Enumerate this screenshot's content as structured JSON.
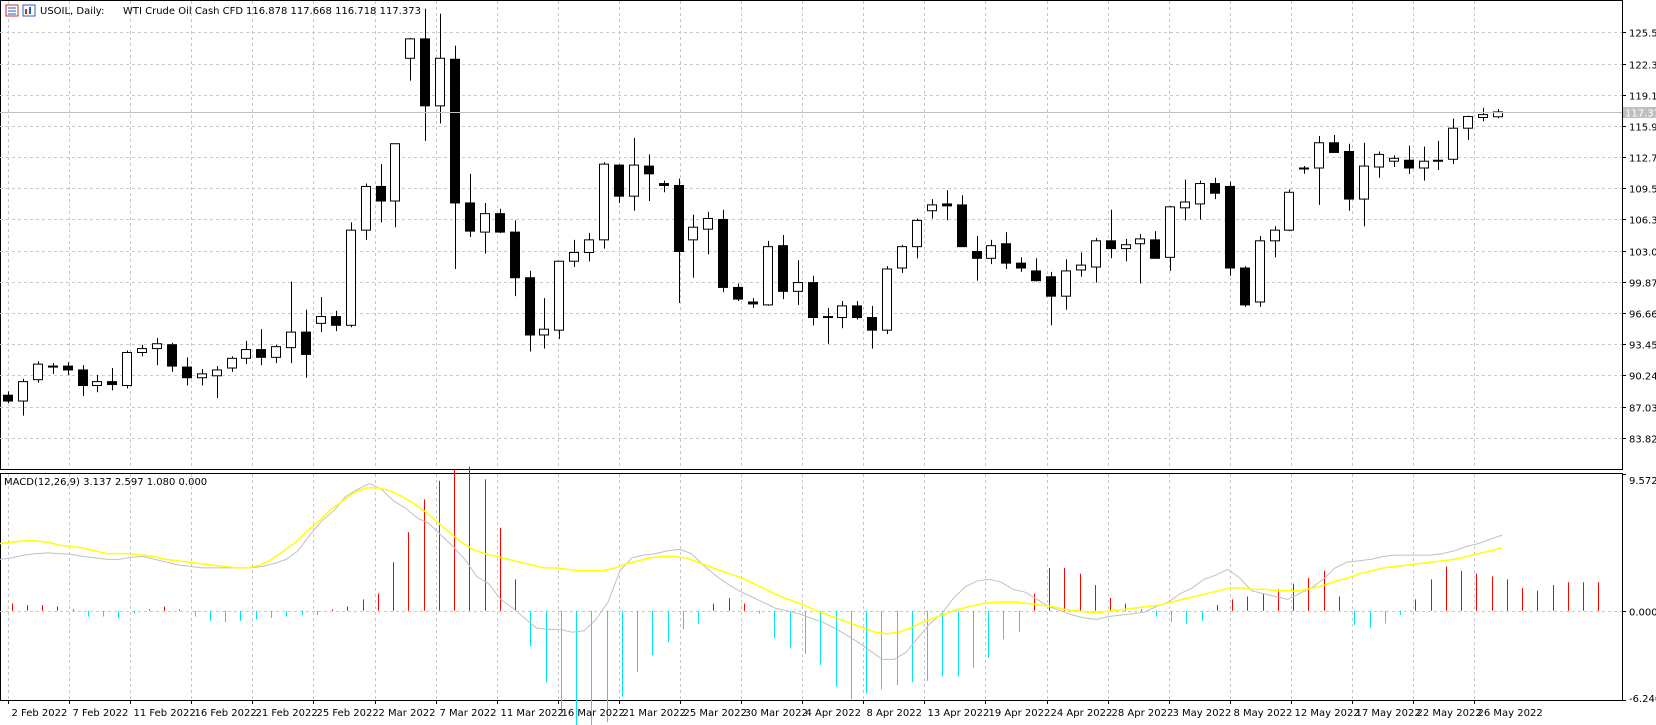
{
  "header": {
    "symbol_timeframe": "USOIL, Daily:",
    "description": "WTI Crude Oil Cash CFD",
    "ohlc": "116.878 117.668 116.718 117.373"
  },
  "macd_header": "MACD(12,26,9) 3.137 2.597 1.080 0.000",
  "colors": {
    "grid": "#c8c8c8",
    "bull_body": "#ffffff",
    "bear_body": "#000000",
    "candle_outline": "#000000",
    "macd_line": "#c0c0c0",
    "signal_line": "#ffff00",
    "hist_positive": "#ff0000",
    "hist_negative": "#00e5ee",
    "price_line": "#c0c0c0",
    "price_tag": "#c0c0c0"
  },
  "current_price_label": "117.373",
  "chart_data": [
    {
      "type": "candlestick",
      "title": "",
      "ylim": [
        80.6,
        128.8
      ],
      "y_ticks": [
        "125.567",
        "122.356",
        "119.145",
        "115.934",
        "112.723",
        "109.512",
        "106.301",
        "103.090",
        "99.879",
        "96.668",
        "93.457",
        "90.246",
        "87.035",
        "83.824"
      ],
      "x_labels": [
        "2 Feb 2022",
        "7 Feb 2022",
        "11 Feb 2022",
        "16 Feb 2022",
        "21 Feb 2022",
        "25 Feb 2022",
        "2 Mar 2022",
        "7 Mar 2022",
        "11 Mar 2022",
        "16 Mar 2022",
        "21 Mar 2022",
        "25 Mar 2022",
        "30 Mar 2022",
        "4 Apr 2022",
        "8 Apr 2022",
        "13 Apr 2022",
        "19 Apr 2022",
        "24 Apr 2022",
        "28 Apr 2022",
        "3 May 2022",
        "8 May 2022",
        "12 May 2022",
        "17 May 2022",
        "22 May 2022",
        "26 May 2022"
      ],
      "ohlc": [
        [
          88.2,
          88.6,
          87.4,
          87.6
        ],
        [
          87.6,
          89.9,
          86.1,
          89.6
        ],
        [
          89.8,
          91.7,
          89.5,
          91.4
        ],
        [
          91.2,
          91.5,
          90.4,
          91.2
        ],
        [
          91.2,
          91.6,
          90.3,
          90.8
        ],
        [
          90.8,
          91.3,
          88.1,
          89.2
        ],
        [
          89.2,
          90.3,
          88.5,
          89.6
        ],
        [
          89.6,
          91.0,
          88.7,
          89.3
        ],
        [
          89.2,
          92.8,
          88.9,
          92.6
        ],
        [
          92.6,
          93.4,
          92.2,
          93.0
        ],
        [
          93.0,
          94.1,
          91.3,
          93.5
        ],
        [
          93.4,
          93.6,
          90.6,
          91.2
        ],
        [
          91.1,
          92.1,
          89.2,
          90.0
        ],
        [
          90.0,
          90.9,
          89.2,
          90.4
        ],
        [
          90.2,
          91.2,
          87.9,
          90.8
        ],
        [
          91.0,
          92.2,
          90.6,
          92.0
        ],
        [
          92.0,
          93.8,
          91.4,
          92.9
        ],
        [
          92.9,
          95.0,
          91.3,
          92.1
        ],
        [
          92.1,
          93.4,
          91.5,
          93.2
        ],
        [
          93.1,
          99.9,
          91.5,
          94.7
        ],
        [
          94.7,
          97.0,
          90.0,
          92.4
        ],
        [
          95.6,
          98.3,
          94.7,
          96.3
        ],
        [
          96.3,
          96.9,
          94.8,
          95.4
        ],
        [
          95.4,
          106.0,
          95.2,
          105.2
        ],
        [
          105.2,
          110.0,
          104.2,
          109.7
        ],
        [
          109.7,
          112.0,
          106.0,
          108.2
        ],
        [
          108.2,
          114.0,
          105.5,
          114.1
        ],
        [
          122.9,
          125.0,
          120.6,
          124.9
        ],
        [
          124.9,
          128.0,
          114.4,
          118.0
        ],
        [
          118.0,
          127.5,
          116.2,
          122.9
        ],
        [
          122.8,
          124.2,
          101.2,
          108.0
        ],
        [
          108.0,
          111.0,
          104.5,
          105.1
        ],
        [
          105.0,
          108.0,
          102.8,
          106.9
        ],
        [
          106.9,
          107.4,
          104.9,
          105.0
        ],
        [
          105.0,
          106.2,
          98.4,
          100.3
        ],
        [
          100.3,
          101.0,
          92.7,
          94.4
        ],
        [
          94.4,
          98.2,
          93.0,
          95.0
        ],
        [
          94.9,
          102.0,
          94.0,
          102.0
        ],
        [
          102.0,
          104.2,
          101.4,
          102.9
        ],
        [
          102.9,
          104.9,
          102.0,
          104.2
        ],
        [
          104.2,
          112.2,
          103.3,
          112.0
        ],
        [
          111.9,
          112.0,
          108.0,
          108.7
        ],
        [
          108.7,
          114.7,
          107.2,
          111.9
        ],
        [
          111.8,
          113.0,
          108.2,
          111.0
        ],
        [
          110.0,
          110.3,
          109.1,
          109.8
        ],
        [
          109.8,
          110.5,
          97.7,
          103.0
        ],
        [
          104.2,
          106.8,
          100.3,
          105.5
        ],
        [
          105.3,
          107.1,
          102.7,
          106.4
        ],
        [
          106.3,
          107.3,
          98.8,
          99.3
        ],
        [
          99.3,
          99.7,
          97.9,
          98.1
        ],
        [
          97.8,
          98.2,
          97.2,
          97.6
        ],
        [
          97.5,
          104.1,
          97.4,
          103.5
        ],
        [
          103.6,
          104.7,
          98.1,
          98.9
        ],
        [
          98.9,
          102.1,
          97.5,
          99.8
        ],
        [
          99.8,
          100.5,
          95.4,
          96.2
        ],
        [
          96.3,
          97.2,
          93.5,
          96.2
        ],
        [
          96.2,
          97.9,
          95.1,
          97.4
        ],
        [
          97.4,
          97.9,
          96.0,
          96.2
        ],
        [
          96.2,
          97.4,
          93.0,
          94.9
        ],
        [
          94.9,
          101.5,
          94.5,
          101.2
        ],
        [
          101.3,
          103.7,
          100.8,
          103.5
        ],
        [
          103.5,
          106.4,
          102.3,
          106.2
        ],
        [
          107.2,
          108.4,
          106.4,
          107.8
        ],
        [
          107.9,
          109.3,
          106.2,
          107.7
        ],
        [
          107.8,
          108.8,
          103.9,
          103.5
        ],
        [
          103.0,
          104.6,
          100.0,
          102.3
        ],
        [
          102.3,
          104.2,
          101.7,
          103.6
        ],
        [
          103.8,
          105.0,
          101.2,
          101.8
        ],
        [
          101.8,
          102.4,
          100.9,
          101.3
        ],
        [
          101.0,
          102.3,
          99.9,
          100.0
        ],
        [
          100.4,
          100.9,
          95.4,
          98.4
        ],
        [
          98.4,
          102.2,
          97.0,
          101.0
        ],
        [
          101.1,
          102.9,
          100.4,
          101.6
        ],
        [
          101.4,
          104.4,
          99.8,
          104.1
        ],
        [
          104.1,
          107.3,
          102.3,
          103.3
        ],
        [
          103.3,
          104.3,
          102.0,
          103.7
        ],
        [
          103.8,
          104.8,
          99.7,
          104.3
        ],
        [
          104.2,
          105.1,
          102.3,
          102.3
        ],
        [
          102.4,
          107.7,
          101.0,
          107.6
        ],
        [
          107.5,
          110.4,
          106.2,
          108.1
        ],
        [
          107.9,
          110.3,
          106.3,
          110.0
        ],
        [
          110.0,
          110.6,
          108.4,
          109.0
        ],
        [
          109.7,
          110.2,
          100.5,
          101.3
        ],
        [
          101.3,
          101.5,
          97.3,
          97.5
        ],
        [
          97.8,
          104.6,
          97.3,
          104.1
        ],
        [
          104.1,
          105.6,
          102.4,
          105.2
        ],
        [
          105.2,
          109.4,
          105.1,
          109.1
        ],
        [
          111.5,
          111.8,
          111.0,
          111.6
        ],
        [
          111.6,
          114.9,
          107.8,
          114.2
        ],
        [
          114.2,
          115.0,
          113.2,
          113.2
        ],
        [
          113.3,
          114.1,
          107.2,
          108.4
        ],
        [
          108.4,
          114.2,
          105.6,
          111.8
        ],
        [
          111.7,
          113.3,
          110.6,
          113.0
        ],
        [
          112.3,
          112.9,
          111.7,
          112.6
        ],
        [
          112.4,
          113.9,
          111.0,
          111.6
        ],
        [
          111.6,
          113.8,
          110.3,
          112.3
        ],
        [
          112.3,
          114.4,
          111.4,
          112.4
        ],
        [
          112.5,
          116.7,
          112.0,
          115.7
        ],
        [
          115.7,
          117.0,
          114.5,
          116.9
        ],
        [
          116.8,
          117.8,
          116.4,
          117.1
        ],
        [
          116.878,
          117.668,
          116.718,
          117.373
        ]
      ]
    },
    {
      "type": "line",
      "title": "MACD(12,26,9)",
      "ylim": [
        -6.24,
        9.572
      ],
      "y_ticks": [
        "9.572",
        "0.000",
        "-6.240"
      ],
      "macd_line": [
        3.6,
        3.7,
        3.9,
        4.0,
        4.05,
        4.0,
        3.95,
        3.8,
        3.7,
        3.6,
        3.6,
        3.75,
        3.8,
        3.6,
        3.4,
        3.2,
        3.1,
        3.0,
        3.0,
        3.0,
        3.0,
        3.0,
        3.1,
        3.3,
        3.6,
        4.2,
        5.3,
        6.3,
        7.0,
        8.0,
        8.5,
        8.9,
        8.5,
        7.7,
        7.2,
        6.5,
        6.1,
        5.3,
        4.5,
        3.6,
        2.4,
        1.9,
        0.8,
        0.2,
        -0.5,
        -1.2,
        -1.3,
        -1.3,
        -1.5,
        -1.4,
        -0.6,
        0.6,
        2.8,
        3.7,
        3.9,
        4.0,
        4.2,
        4.3,
        4.0,
        3.2,
        2.5,
        1.9,
        1.4,
        1.0,
        0.6,
        0.2,
        0.0,
        -0.2,
        -0.5,
        -0.8,
        -1.2,
        -1.7,
        -2.2,
        -2.8,
        -3.4,
        -3.4,
        -2.9,
        -1.9,
        -0.9,
        -0.2,
        0.9,
        1.7,
        2.1,
        2.2,
        2.0,
        1.5,
        1.3,
        0.8,
        0.3,
        0.0,
        -0.3,
        -0.5,
        -0.6,
        -0.4,
        -0.3,
        -0.2,
        -0.1,
        0.3,
        0.6,
        1.2,
        1.6,
        2.2,
        2.5,
        2.9,
        2.3,
        1.4,
        1.2,
        1.0,
        0.8,
        1.2,
        1.6,
        2.2,
        3.0,
        3.4,
        3.5,
        3.6,
        3.8,
        3.9,
        3.9,
        3.9,
        3.9,
        4.0,
        4.2,
        4.5,
        4.7,
        5.0,
        5.3
      ],
      "signal_line": [
        4.7,
        4.8,
        4.9,
        4.9,
        4.8,
        4.6,
        4.5,
        4.4,
        4.2,
        4.0,
        4.0,
        4.0,
        3.9,
        3.8,
        3.6,
        3.5,
        3.4,
        3.3,
        3.2,
        3.1,
        3.0,
        3.0,
        3.2,
        3.6,
        4.2,
        4.8,
        5.6,
        6.3,
        7.1,
        7.7,
        8.3,
        8.6,
        8.6,
        8.4,
        8.0,
        7.5,
        6.9,
        6.2,
        5.5,
        4.8,
        4.3,
        4.0,
        3.8,
        3.6,
        3.4,
        3.2,
        3.0,
        3.0,
        2.9,
        2.8,
        2.8,
        2.8,
        3.0,
        3.3,
        3.5,
        3.7,
        3.8,
        3.8,
        3.7,
        3.4,
        3.1,
        2.8,
        2.5,
        2.2,
        1.8,
        1.4,
        1.0,
        0.7,
        0.4,
        0.0,
        -0.3,
        -0.6,
        -0.9,
        -1.2,
        -1.5,
        -1.6,
        -1.5,
        -1.2,
        -0.8,
        -0.5,
        -0.2,
        0.1,
        0.3,
        0.5,
        0.6,
        0.6,
        0.6,
        0.5,
        0.4,
        0.3,
        0.1,
        0.0,
        -0.1,
        -0.1,
        0.0,
        0.1,
        0.2,
        0.3,
        0.4,
        0.6,
        0.8,
        1.0,
        1.2,
        1.4,
        1.6,
        1.6,
        1.5,
        1.5,
        1.4,
        1.4,
        1.4,
        1.6,
        1.8,
        2.1,
        2.3,
        2.6,
        2.8,
        3.0,
        3.1,
        3.2,
        3.3,
        3.4,
        3.5,
        3.6,
        3.8,
        4.0,
        4.2,
        4.4
      ],
      "histogram": [
        0.5,
        0.4,
        0.4,
        0.3,
        0.1,
        -0.4,
        -0.4,
        -0.5,
        -0.2,
        0.1,
        0.3,
        0.1,
        -0.4,
        -0.7,
        -0.8,
        -0.7,
        -0.6,
        -0.5,
        -0.4,
        -0.3,
        -0.3,
        0.1,
        0.3,
        0.8,
        1.2,
        3.4,
        5.5,
        7.8,
        9.1,
        9.9,
        10.1,
        9.2,
        5.8,
        2.2,
        -2.5,
        -5.0,
        -7.1,
        -8.4,
        -8.7,
        -7.8,
        -6.0,
        -4.3,
        -3.1,
        -2.2,
        -1.3,
        -0.9,
        0.5,
        0.9,
        0.5,
        -0.2,
        -1.9,
        -2.6,
        -3.0,
        -3.8,
        -5.3,
        -6.2,
        -5.8,
        -5.5,
        -5.2,
        -5.0,
        -4.9,
        -4.6,
        -4.6,
        -4.0,
        -3.3,
        -2.0,
        -1.5,
        1.2,
        3.0,
        3.0,
        2.6,
        1.8,
        0.9,
        0.5,
        0.1,
        -0.4,
        -0.8,
        -0.9,
        -0.7,
        0.4,
        0.8,
        1.0,
        1.2,
        1.5,
        1.9,
        2.3,
        2.8,
        1.0,
        -1.0,
        -1.2,
        -0.9,
        -0.3,
        0.8,
        2.2,
        3.1,
        2.8,
        2.6,
        2.4,
        2.2,
        1.6,
        1.4,
        1.8,
        2.0,
        2.0,
        2.0
      ]
    }
  ]
}
